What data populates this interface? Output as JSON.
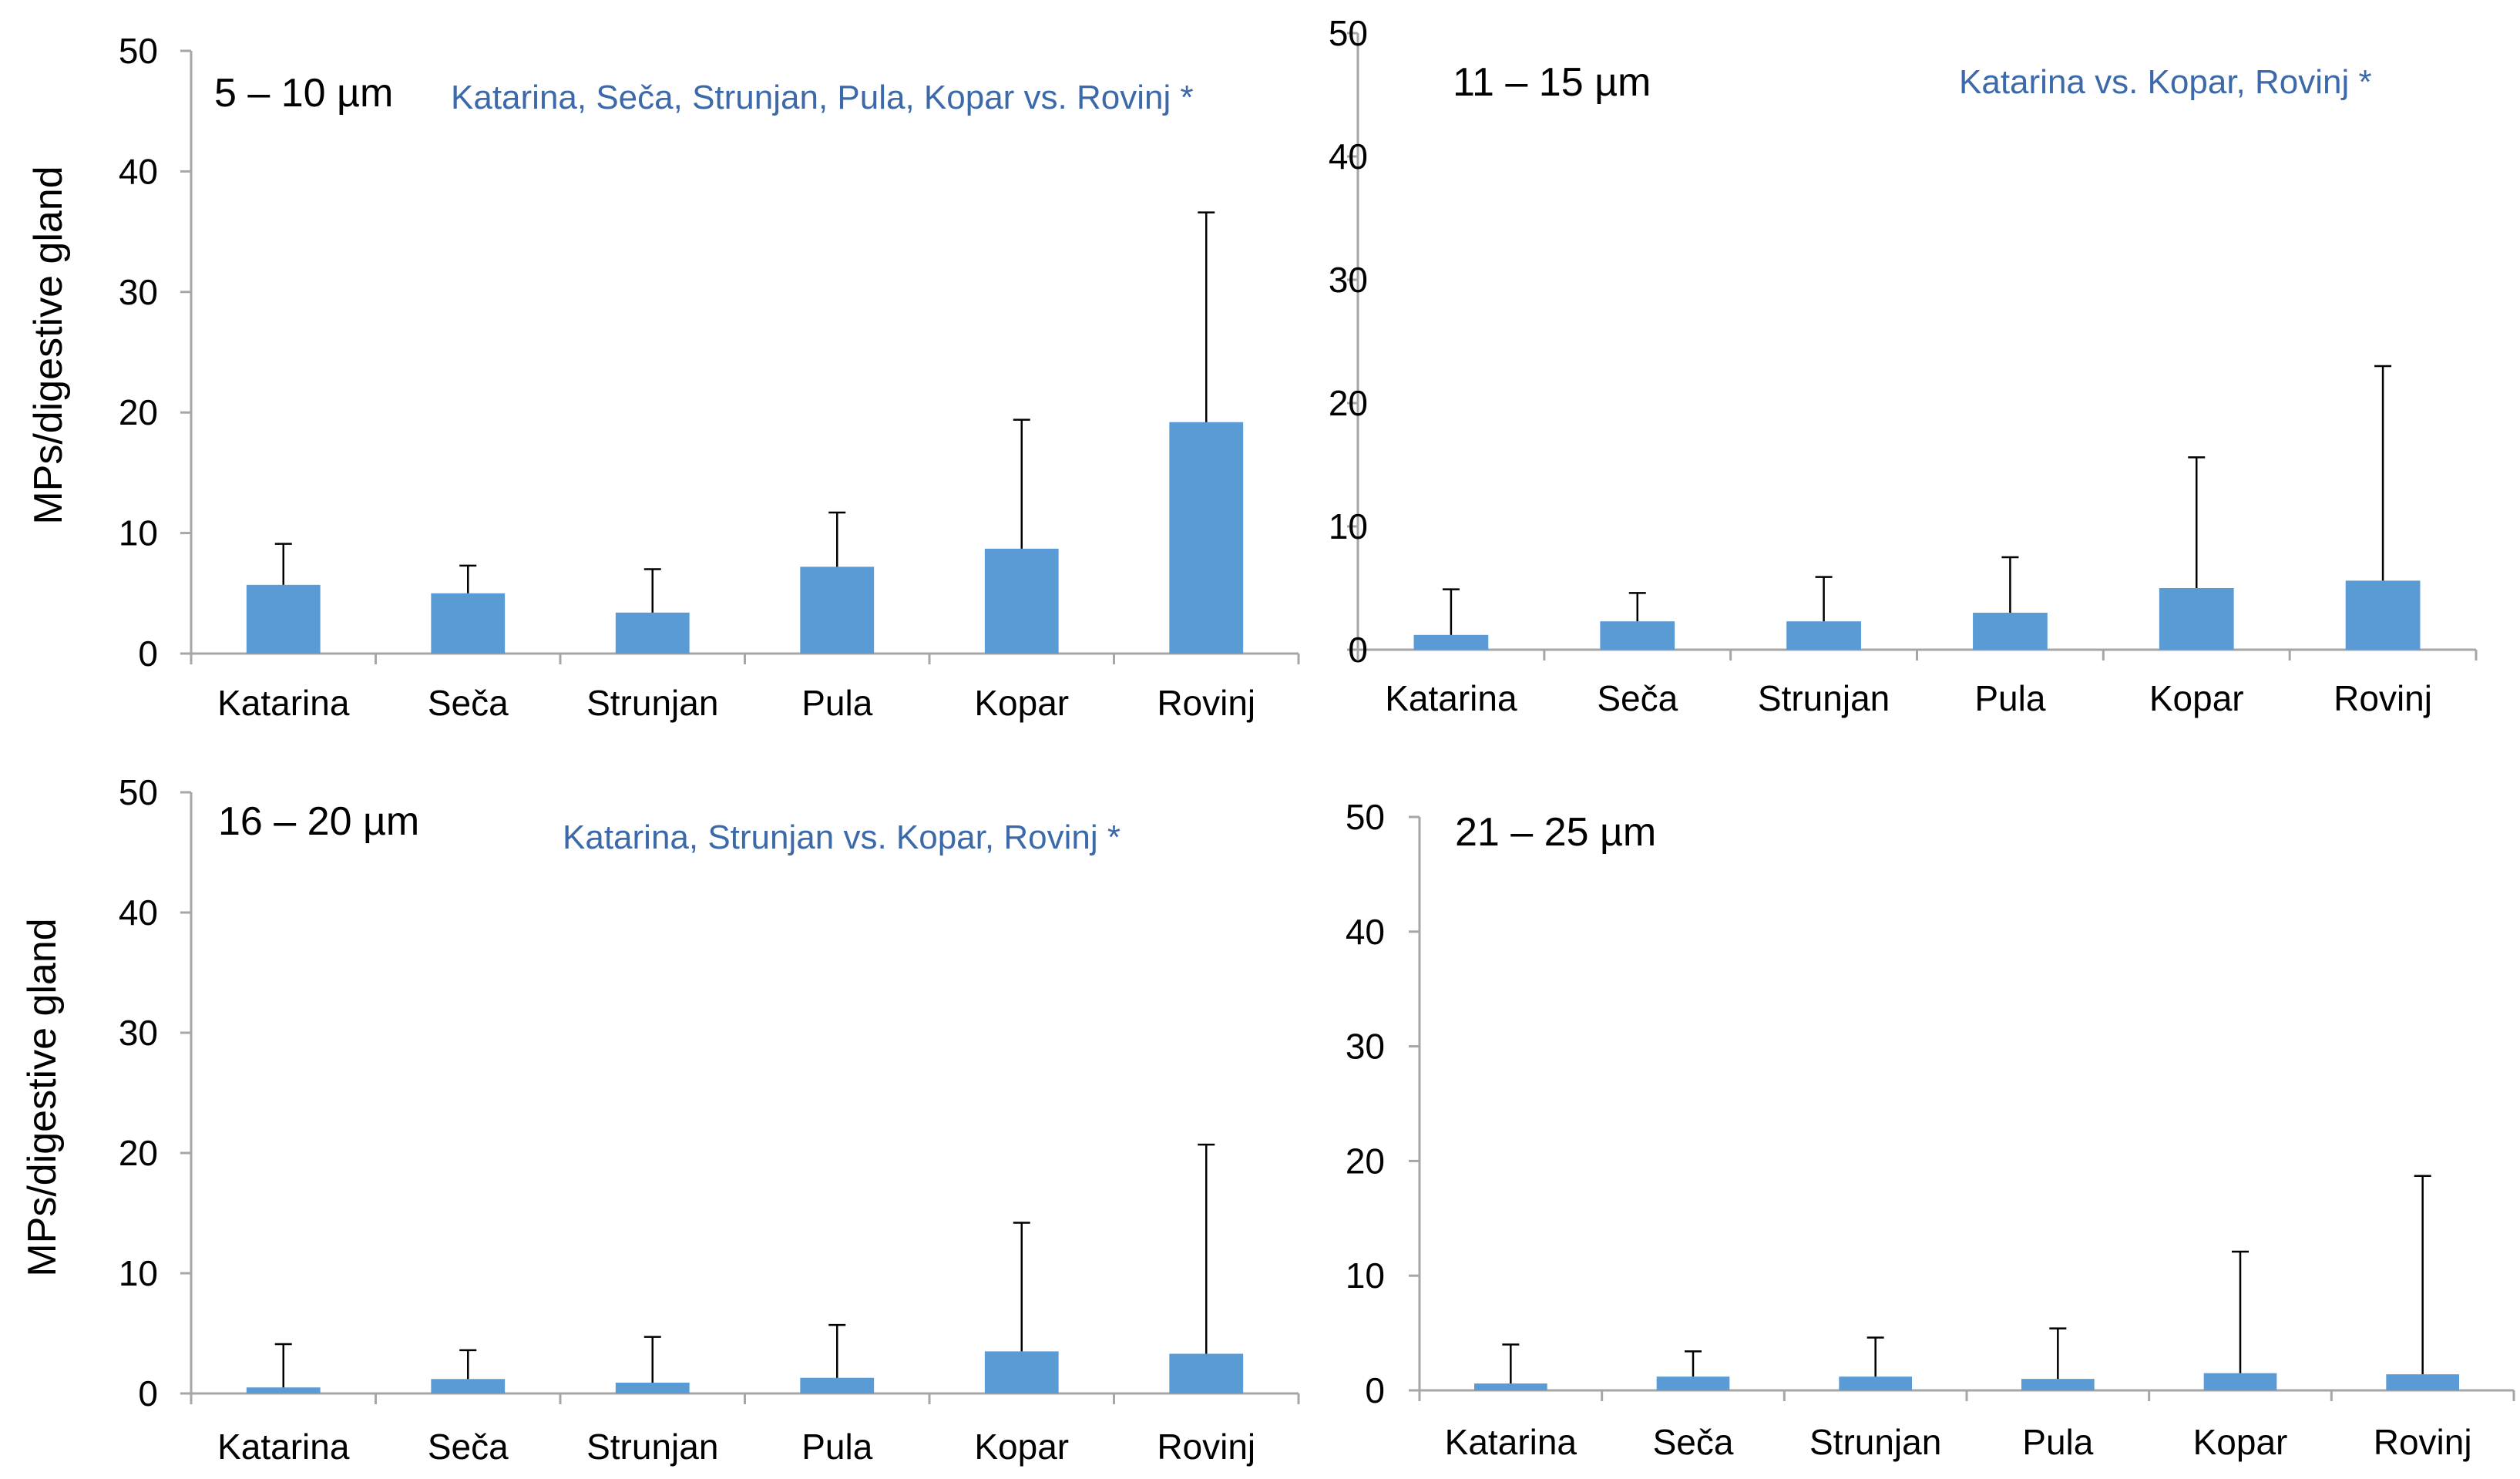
{
  "y_axis_label": "MPs/digestive gland",
  "colors": {
    "bar": "#5b9bd5",
    "note": "#3c69aa",
    "axis": "#a6a6a6",
    "error": "#000000"
  },
  "chart_data": [
    {
      "type": "bar",
      "title": "5 – 10  µm",
      "annotation": "Katarina, Sečа, Strunjan, Pula, Kopar vs. Rovinj *",
      "categories": [
        "Katarina",
        "Seča",
        "Strunjan",
        "Pula",
        "Kopar",
        "Rovinj"
      ],
      "values": [
        5.7,
        5.0,
        3.4,
        7.2,
        8.7,
        19.2
      ],
      "error_upper": [
        9.1,
        7.3,
        7.0,
        11.7,
        19.4,
        36.6
      ],
      "ylim": [
        0,
        50
      ],
      "yticks": [
        0,
        10,
        20,
        30,
        40,
        50
      ],
      "ylabel": "MPs/digestive gland",
      "xlabel": ""
    },
    {
      "type": "bar",
      "title": "11 – 15  µm",
      "annotation": "Katarina vs. Kopar, Rovinj *",
      "categories": [
        "Katarina",
        "Seča",
        "Strunjan",
        "Pula",
        "Kopar",
        "Rovinj"
      ],
      "values": [
        1.2,
        2.3,
        2.3,
        3.0,
        5.0,
        5.6
      ],
      "error_upper": [
        4.9,
        4.6,
        5.9,
        7.5,
        15.6,
        23.0
      ],
      "ylim": [
        0,
        50
      ],
      "yticks": [
        0,
        10,
        20,
        30,
        40,
        50
      ],
      "ylabel": "",
      "xlabel": ""
    },
    {
      "type": "bar",
      "title": "16 – 20  µm",
      "annotation": "Katarina, Strunjan vs. Kopar, Rovinj *",
      "categories": [
        "Katarina",
        "Seča",
        "Strunjan",
        "Pula",
        "Kopar",
        "Rovinj"
      ],
      "values": [
        0.5,
        1.2,
        0.9,
        1.3,
        3.5,
        3.3
      ],
      "error_upper": [
        4.1,
        3.6,
        4.7,
        5.7,
        14.2,
        20.7
      ],
      "ylim": [
        0,
        50
      ],
      "yticks": [
        0,
        10,
        20,
        30,
        40,
        50
      ],
      "ylabel": "MPs/digestive gland",
      "xlabel": ""
    },
    {
      "type": "bar",
      "title": "21 – 25  µm",
      "annotation": "",
      "categories": [
        "Katarina",
        "Seča",
        "Strunjan",
        "Pula",
        "Kopar",
        "Rovinj"
      ],
      "values": [
        0.6,
        1.2,
        1.2,
        1.0,
        1.5,
        1.4
      ],
      "error_upper": [
        4.0,
        3.4,
        4.6,
        5.4,
        12.1,
        18.7
      ],
      "ylim": [
        0,
        50
      ],
      "yticks": [
        0,
        10,
        20,
        30,
        40,
        50
      ],
      "ylabel": "",
      "xlabel": ""
    }
  ]
}
